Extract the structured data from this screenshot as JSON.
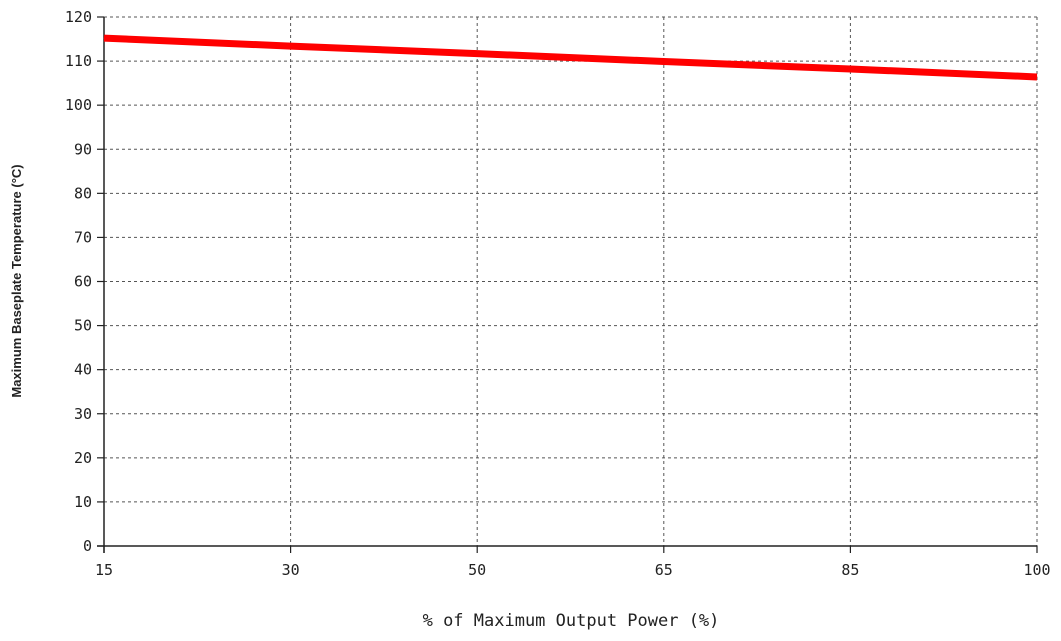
{
  "chart_data": {
    "type": "line",
    "title": "",
    "xlabel": "% of Maximum Output Power (%)",
    "ylabel": "Maximum Baseplate Temperature (°C)",
    "x_ticks": [
      "15",
      "30",
      "50",
      "65",
      "85",
      "100"
    ],
    "y_ticks": [
      "0",
      "10",
      "20",
      "30",
      "40",
      "50",
      "60",
      "70",
      "80",
      "90",
      "100",
      "110",
      "120"
    ],
    "ylim": [
      0,
      120
    ],
    "x_axis_scale": "categorical, evenly spaced ticks",
    "grid": true,
    "grid_style": "dashed",
    "series": [
      {
        "x": [
          "15",
          "30",
          "50",
          "65",
          "85",
          "100"
        ],
        "values": [
          115.2,
          113.4,
          111.7,
          109.9,
          108.2,
          106.4
        ],
        "color": "#ff0000"
      }
    ]
  }
}
